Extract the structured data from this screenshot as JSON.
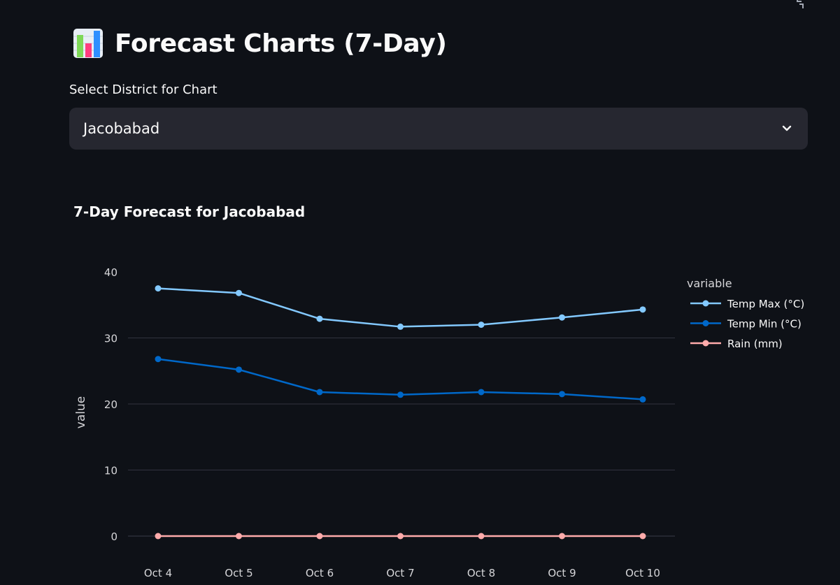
{
  "page": {
    "title": "Forecast Charts (7-Day)",
    "title_icon": "bar-chart-emoji-icon"
  },
  "district_select": {
    "label": "Select District for Chart",
    "value": "Jacobabad",
    "icon": "chevron-down-icon"
  },
  "colors": {
    "background": "#0e1117",
    "select_bg": "#262730",
    "temp_max": "#83c9ff",
    "temp_min": "#0068c9",
    "rain": "#ffabab"
  },
  "chart_data": {
    "type": "line",
    "title": "7-Day Forecast for Jacobabad",
    "xlabel": "",
    "ylabel": "value",
    "legend_title": "variable",
    "legend_position": "right",
    "categories": [
      "Oct 4",
      "Oct 5",
      "Oct 6",
      "Oct 7",
      "Oct 8",
      "Oct 9",
      "Oct 10"
    ],
    "y_ticks": [
      0,
      10,
      20,
      30,
      40
    ],
    "ylim": [
      -2,
      45
    ],
    "grid": true,
    "series": [
      {
        "name": "Temp Max (°C)",
        "color": "#83c9ff",
        "values": [
          37.5,
          36.8,
          32.9,
          31.7,
          32.0,
          33.1,
          34.3
        ]
      },
      {
        "name": "Temp Min (°C)",
        "color": "#0068c9",
        "values": [
          26.8,
          25.2,
          21.8,
          21.4,
          21.8,
          21.5,
          20.7
        ]
      },
      {
        "name": "Rain (mm)",
        "color": "#ffabab",
        "values": [
          0,
          0,
          0,
          0,
          0,
          0,
          0
        ]
      }
    ]
  }
}
